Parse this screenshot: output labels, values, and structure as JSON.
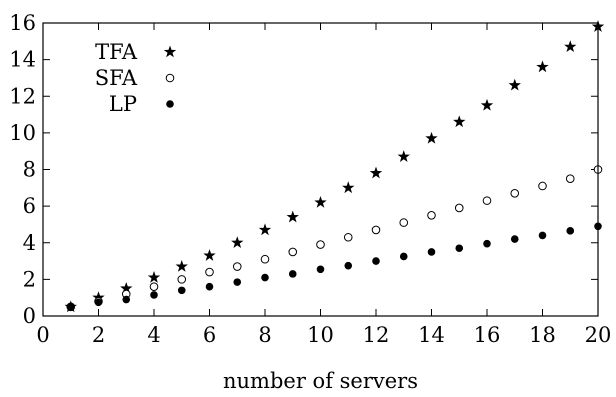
{
  "chart_data": {
    "type": "scatter",
    "title": "",
    "xlabel": "number of servers",
    "ylabel": "",
    "xlim": [
      0,
      20
    ],
    "ylim": [
      0,
      16
    ],
    "xticks": [
      0,
      2,
      4,
      6,
      8,
      10,
      12,
      14,
      16,
      18,
      20
    ],
    "yticks": [
      0,
      2,
      4,
      6,
      8,
      10,
      12,
      14,
      16
    ],
    "grid": false,
    "legend_position": "top-left",
    "series": [
      {
        "name": "TFA",
        "marker": "star",
        "x": [
          1,
          2,
          3,
          4,
          5,
          6,
          7,
          8,
          9,
          10,
          11,
          12,
          13,
          14,
          15,
          16,
          17,
          18,
          19,
          20
        ],
        "y": [
          0.5,
          1.0,
          1.5,
          2.1,
          2.7,
          3.3,
          4.0,
          4.7,
          5.4,
          6.2,
          7.0,
          7.8,
          8.7,
          9.7,
          10.6,
          11.5,
          12.6,
          13.6,
          14.7,
          15.8
        ]
      },
      {
        "name": "SFA",
        "marker": "open-circle",
        "x": [
          1,
          2,
          3,
          4,
          5,
          6,
          7,
          8,
          9,
          10,
          11,
          12,
          13,
          14,
          15,
          16,
          17,
          18,
          19,
          20
        ],
        "y": [
          0.5,
          0.8,
          1.2,
          1.6,
          2.0,
          2.4,
          2.7,
          3.1,
          3.5,
          3.9,
          4.3,
          4.7,
          5.1,
          5.5,
          5.9,
          6.3,
          6.7,
          7.1,
          7.5,
          8.0
        ]
      },
      {
        "name": "LP",
        "marker": "filled-circle",
        "x": [
          1,
          2,
          3,
          4,
          5,
          6,
          7,
          8,
          9,
          10,
          11,
          12,
          13,
          14,
          15,
          16,
          17,
          18,
          19,
          20
        ],
        "y": [
          0.5,
          0.75,
          0.9,
          1.15,
          1.4,
          1.6,
          1.85,
          2.1,
          2.3,
          2.55,
          2.75,
          3.0,
          3.25,
          3.5,
          3.7,
          3.95,
          4.2,
          4.4,
          4.65,
          4.9
        ]
      }
    ]
  }
}
